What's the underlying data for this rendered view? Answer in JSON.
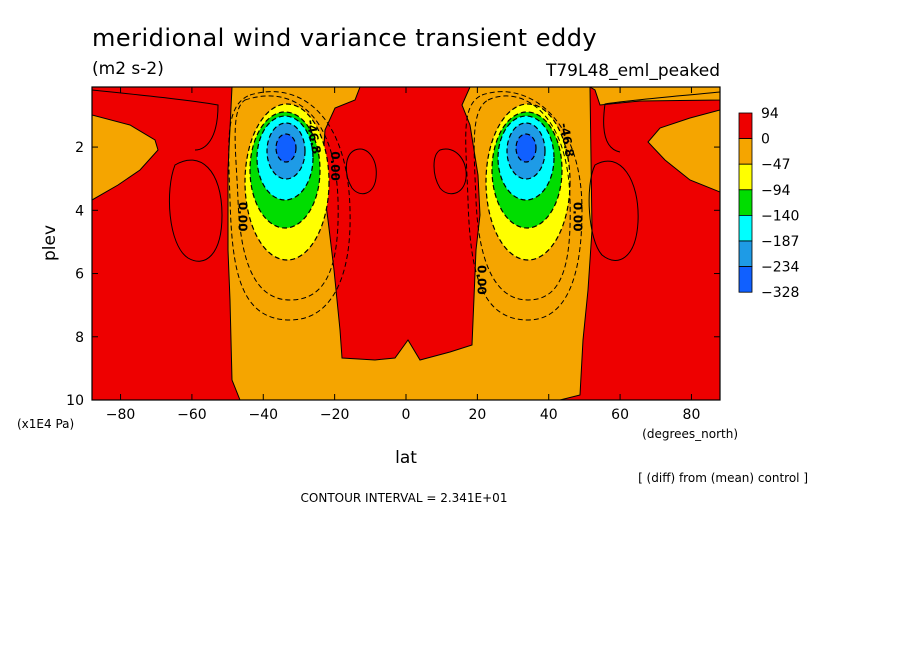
{
  "header": {
    "title": "meridional wind variance transient eddy",
    "units": "(m2 s-2)",
    "experiment": "T79L48_eml_peaked"
  },
  "footer": {
    "diff_note": "[ (diff) from (mean) control ]",
    "contour_interval": "CONTOUR INTERVAL = 2.341E+01"
  },
  "chart_data": {
    "type": "heatmap",
    "title": "meridional wind variance transient eddy",
    "xlabel": "lat",
    "x_units": "(degrees_north)",
    "ylabel": "plev",
    "y_units": "(x1E4 Pa)",
    "xlim": [
      -88,
      88
    ],
    "ylim": [
      10,
      0.1
    ],
    "y_inverted": true,
    "x_ticks": [
      -80,
      -60,
      -40,
      -20,
      0,
      20,
      40,
      60,
      80
    ],
    "x_tick_labels": [
      "−80",
      "−60",
      "−40",
      "−20",
      "0",
      "20",
      "40",
      "60",
      "80"
    ],
    "y_ticks": [
      2,
      4,
      6,
      8,
      10
    ],
    "y_tick_labels": [
      "2",
      "4",
      "6",
      "8",
      "10"
    ],
    "colorbar": {
      "labels": [
        "94",
        "0",
        "−47",
        "−94",
        "−140",
        "−187",
        "−234",
        "−328"
      ],
      "colors": [
        "#ee0000",
        "#f5a500",
        "#ffff00",
        "#00dd00",
        "#00ffff",
        "#1e9be6",
        "#1060ff"
      ]
    },
    "contour_labels": [
      {
        "text": "0.00",
        "lat": -47,
        "plev": 4.2,
        "rot": 90
      },
      {
        "text": "0.00",
        "lat": -21,
        "plev": 2.6,
        "rot": 90
      },
      {
        "text": "0.00",
        "lat": 20,
        "plev": 6.2,
        "rot": 90
      },
      {
        "text": "0.00",
        "lat": 47,
        "plev": 4.2,
        "rot": 90
      },
      {
        "text": "-46.8",
        "lat": -27,
        "plev": 1.7,
        "rot": 80
      },
      {
        "text": "-46.8",
        "lat": 44,
        "plev": 1.8,
        "rot": 80
      }
    ],
    "minima": [
      {
        "lat": -34,
        "plev": 2.1,
        "value": -328
      },
      {
        "lat": 34,
        "plev": 2.1,
        "value": -328
      }
    ],
    "interval": 23.41
  }
}
